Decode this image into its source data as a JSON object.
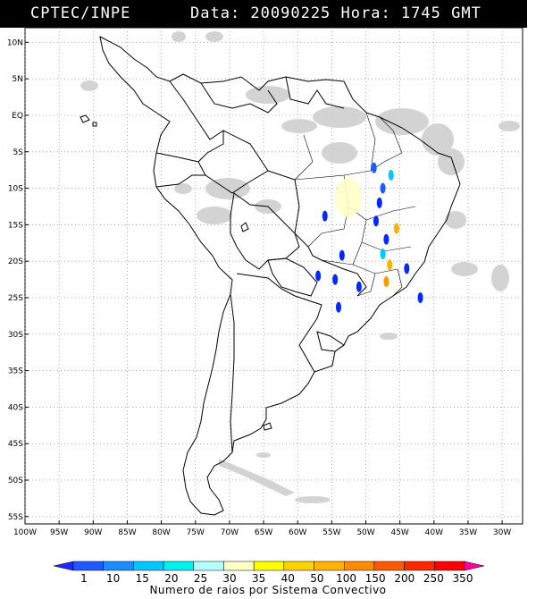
{
  "header": {
    "source": "CPTEC/INPE",
    "datetime": "Data: 20090225 Hora: 1745 GMT"
  },
  "map": {
    "lat_labels": [
      "10N",
      "5N",
      "EQ",
      "5S",
      "10S",
      "15S",
      "20S",
      "25S",
      "30S",
      "35S",
      "40S",
      "45S",
      "50S",
      "55S"
    ],
    "lat_values": [
      10,
      5,
      0,
      -5,
      -10,
      -15,
      -20,
      -25,
      -30,
      -35,
      -40,
      -45,
      -50,
      -55
    ],
    "lon_labels": [
      "100W",
      "95W",
      "90W",
      "85W",
      "80W",
      "75W",
      "70W",
      "65W",
      "60W",
      "55W",
      "50W",
      "45W",
      "40W",
      "35W",
      "30W"
    ],
    "lon_values": [
      -100,
      -95,
      -90,
      -85,
      -80,
      -75,
      -70,
      -65,
      -60,
      -55,
      -50,
      -45,
      -40,
      -35,
      -30
    ],
    "extent": {
      "lon_min": -100,
      "lon_max": -27,
      "lat_min": -56,
      "lat_max": 12
    },
    "grid": true,
    "land_color": "#ffffff",
    "cloud_color": "#c8c8c8",
    "lightning_markers": [
      {
        "lon": -48.8,
        "lat": -7.2,
        "color": "#1e5bff"
      },
      {
        "lon": -46.3,
        "lat": -8.2,
        "color": "#00c8ff"
      },
      {
        "lon": -47.5,
        "lat": -10.0,
        "color": "#1e5bff"
      },
      {
        "lon": -48.0,
        "lat": -12.0,
        "color": "#0028ff"
      },
      {
        "lon": -48.5,
        "lat": -14.5,
        "color": "#0028ff"
      },
      {
        "lon": -56.0,
        "lat": -13.8,
        "color": "#0028ff"
      },
      {
        "lon": -47.0,
        "lat": -17.0,
        "color": "#0028ff"
      },
      {
        "lon": -45.5,
        "lat": -15.5,
        "color": "#ffb000"
      },
      {
        "lon": -53.5,
        "lat": -19.2,
        "color": "#0028ff"
      },
      {
        "lon": -46.5,
        "lat": -20.5,
        "color": "#ffb000"
      },
      {
        "lon": -54.5,
        "lat": -22.5,
        "color": "#0028ff"
      },
      {
        "lon": -57.0,
        "lat": -22.0,
        "color": "#0028ff"
      },
      {
        "lon": -47.0,
        "lat": -22.8,
        "color": "#ff9a00"
      },
      {
        "lon": -51.0,
        "lat": -23.5,
        "color": "#0028ff"
      },
      {
        "lon": -44.0,
        "lat": -21.0,
        "color": "#0028ff"
      },
      {
        "lon": -54.0,
        "lat": -26.3,
        "color": "#0028ff"
      },
      {
        "lon": -42.0,
        "lat": -25.0,
        "color": "#0028ff"
      },
      {
        "lon": -47.5,
        "lat": -19.0,
        "color": "#00c8ff"
      }
    ]
  },
  "colorbar": {
    "title": "Numero de raios por Sistema Convectivo",
    "labels": [
      "1",
      "10",
      "15",
      "20",
      "25",
      "30",
      "35",
      "40",
      "50",
      "100",
      "150",
      "200",
      "250",
      "350"
    ],
    "colors": [
      "#1e28ff",
      "#1e5aff",
      "#1e8cff",
      "#00c8ff",
      "#00f0f0",
      "#b4ffff",
      "#ffffc8",
      "#ffff00",
      "#ffd200",
      "#ffb400",
      "#ff8c00",
      "#ff5a00",
      "#ff2800",
      "#ff0000",
      "#ff00a0"
    ]
  }
}
